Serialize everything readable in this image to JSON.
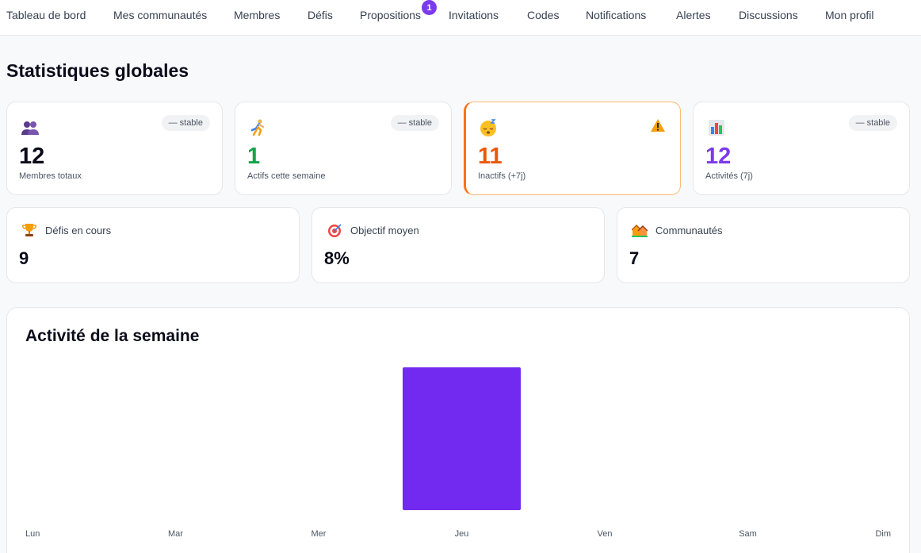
{
  "nav": {
    "items": [
      {
        "name": "nav-tableau-de-bord",
        "label": "Tableau de bord"
      },
      {
        "name": "nav-mes-communautes",
        "label": "Mes communautés"
      },
      {
        "name": "nav-membres",
        "label": "Membres"
      },
      {
        "name": "nav-defis",
        "label": "Défis"
      },
      {
        "name": "nav-propositions",
        "label": "Propositions"
      },
      {
        "name": "nav-invitations",
        "label": "Invitations"
      },
      {
        "name": "nav-codes",
        "label": "Codes"
      },
      {
        "name": "nav-notifications",
        "label": "Notifications"
      },
      {
        "name": "nav-alertes",
        "label": "Alertes"
      },
      {
        "name": "nav-discussions",
        "label": "Discussions"
      },
      {
        "name": "nav-mon-profil",
        "label": "Mon profil"
      }
    ],
    "propositions_badge": "1"
  },
  "page": {
    "title": "Statistiques globales"
  },
  "stats": [
    {
      "icon": "two-people-icon",
      "trend": "— stable",
      "value": "12",
      "label": "Membres totaux",
      "color": "#0b0b1a"
    },
    {
      "icon": "runner-icon",
      "trend": "— stable",
      "value": "1",
      "label": "Actifs cette semaine",
      "color": "#16a34a"
    },
    {
      "icon": "sleeping-face-icon",
      "alert_icon": "warning-icon",
      "value": "11",
      "label": "Inactifs (+7j)",
      "color": "#ea580c"
    },
    {
      "icon": "bar-chart-icon",
      "trend": "— stable",
      "value": "12",
      "label": "Activités (7j)",
      "color": "#7c3aed"
    }
  ],
  "secondary": [
    {
      "icon": "trophy-icon",
      "label": "Défis en cours",
      "value": "9"
    },
    {
      "icon": "target-icon",
      "label": "Objectif moyen",
      "value": "8%"
    },
    {
      "icon": "houses-icon",
      "label": "Communautés",
      "value": "7"
    }
  ],
  "colors": {
    "accent": "#7c3aed",
    "warning": "#f97316",
    "success": "#16a34a"
  },
  "chart_data": {
    "type": "bar",
    "title": "Activité de la semaine",
    "categories": [
      "Lun",
      "Mar",
      "Mer",
      "Jeu",
      "Ven",
      "Sam",
      "Dim"
    ],
    "values": [
      0,
      0,
      0,
      1,
      0,
      0,
      0
    ],
    "ylim": [
      0,
      1
    ],
    "color": "#7229f0",
    "grid": false
  }
}
